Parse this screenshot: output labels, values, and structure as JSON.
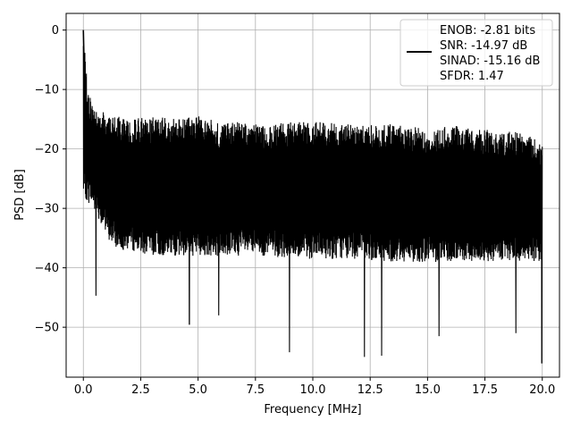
{
  "chart_data": {
    "type": "line",
    "title": "",
    "xlabel": "Frequency [MHz]",
    "ylabel": "PSD [dB]",
    "xlim": [
      -0.75,
      20.75
    ],
    "ylim": [
      -58.4,
      2.8
    ],
    "xticks": [
      0.0,
      2.5,
      5.0,
      7.5,
      10.0,
      12.5,
      15.0,
      17.5,
      20.0
    ],
    "xtick_labels": [
      "0.0",
      "2.5",
      "5.0",
      "7.5",
      "10.0",
      "12.5",
      "15.0",
      "17.5",
      "20.0"
    ],
    "yticks": [
      0,
      -10,
      -20,
      -30,
      -40,
      -50
    ],
    "ytick_labels": [
      "0",
      "−10",
      "−20",
      "−30",
      "−40",
      "−50"
    ],
    "grid": true,
    "legend_position": "top-right",
    "legend_lines": [
      "ENOB: -2.81 bits",
      "SNR: -14.97 dB",
      "SINAD: -15.16 dB",
      "SFDR: 1.47"
    ],
    "series": [
      {
        "color": "#000000",
        "x": [
          0.0,
          0.02,
          0.05,
          0.08,
          0.12,
          0.16,
          0.2,
          0.25,
          0.3,
          0.35,
          0.4,
          0.45,
          0.5,
          0.6,
          0.7,
          0.8,
          0.9,
          1.0,
          1.2,
          1.4,
          1.6,
          1.8,
          2.0,
          2.2,
          2.4,
          2.6,
          2.8,
          3.0,
          3.3,
          3.6,
          3.9,
          4.2,
          4.5,
          4.62,
          4.8,
          5.1,
          5.4,
          5.7,
          6.0,
          6.3,
          6.6,
          6.9,
          7.2,
          7.5,
          7.8,
          8.1,
          8.4,
          8.7,
          8.98,
          9.3,
          9.6,
          9.9,
          10.2,
          10.5,
          10.8,
          11.1,
          11.4,
          11.7,
          12.0,
          12.25,
          12.5,
          12.8,
          13.0,
          13.3,
          13.6,
          13.9,
          14.2,
          14.5,
          14.8,
          15.1,
          15.4,
          15.7,
          16.0,
          16.3,
          16.6,
          16.9,
          17.2,
          17.5,
          17.8,
          18.1,
          18.4,
          18.7,
          19.0,
          19.3,
          19.6,
          19.9,
          19.98,
          20.0
        ],
        "y": [
          0.0,
          -3.5,
          -8.0,
          -12.5,
          -15.0,
          -17.0,
          -18.5,
          -19.5,
          -20.5,
          -21.0,
          -21.5,
          -22.0,
          -22.0,
          -22.5,
          -22.5,
          -23.0,
          -23.0,
          -23.0,
          -23.5,
          -23.5,
          -23.5,
          -24.0,
          -24.0,
          -24.0,
          -24.0,
          -24.0,
          -24.0,
          -24.5,
          -24.5,
          -24.5,
          -24.5,
          -24.5,
          -24.5,
          -24.5,
          -24.5,
          -24.5,
          -24.5,
          -25.0,
          -25.0,
          -25.0,
          -25.0,
          -25.0,
          -25.0,
          -25.0,
          -25.0,
          -25.0,
          -25.0,
          -25.0,
          -25.0,
          -25.0,
          -25.0,
          -25.0,
          -25.0,
          -25.0,
          -25.0,
          -25.0,
          -25.0,
          -25.0,
          -25.0,
          -25.0,
          -25.0,
          -25.0,
          -25.0,
          -25.0,
          -25.0,
          -25.0,
          -25.0,
          -25.0,
          -25.0,
          -25.0,
          -25.0,
          -25.0,
          -25.0,
          -25.0,
          -25.0,
          -25.0,
          -25.0,
          -25.0,
          -25.0,
          -25.0,
          -25.0,
          -25.0,
          -25.0,
          -25.0,
          -25.0,
          -25.0,
          -25.0,
          -25.0
        ]
      }
    ],
    "noise_envelope": {
      "x": [
        0.0,
        0.2,
        0.4,
        0.6,
        1.0,
        1.5,
        2.0,
        3.0,
        4.0,
        5.0,
        6.0,
        7.0,
        8.0,
        9.0,
        10.0,
        11.0,
        12.0,
        13.0,
        14.0,
        15.0,
        16.0,
        17.0,
        18.0,
        19.0,
        20.0
      ],
      "upper": [
        0.0,
        -10.5,
        -12.0,
        -13.5,
        -14.0,
        -14.5,
        -15.0,
        -14.5,
        -15.0,
        -14.5,
        -15.5,
        -15.5,
        -16.0,
        -15.5,
        -15.5,
        -15.5,
        -16.0,
        -16.0,
        -15.5,
        -17.0,
        -16.0,
        -16.5,
        -17.0,
        -17.0,
        -19.0
      ],
      "lower": [
        -28.0,
        -29.0,
        -30.0,
        -31.0,
        -35.0,
        -37.0,
        -37.0,
        -38.0,
        -38.0,
        -38.0,
        -38.0,
        -38.0,
        -38.0,
        -38.5,
        -38.5,
        -38.5,
        -38.5,
        -39.0,
        -39.0,
        -39.0,
        -39.0,
        -39.0,
        -39.0,
        -39.0,
        -39.0
      ]
    },
    "deep_nulls": [
      {
        "x": 0.55,
        "y": -44.7
      },
      {
        "x": 4.62,
        "y": -49.5
      },
      {
        "x": 5.9,
        "y": -48.0
      },
      {
        "x": 8.98,
        "y": -54.2
      },
      {
        "x": 12.25,
        "y": -55.0
      },
      {
        "x": 13.0,
        "y": -54.8
      },
      {
        "x": 15.5,
        "y": -51.5
      },
      {
        "x": 18.85,
        "y": -51.0
      },
      {
        "x": 19.98,
        "y": -56.0
      }
    ]
  }
}
